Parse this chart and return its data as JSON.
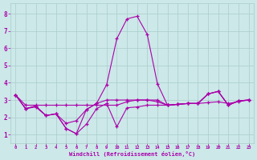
{
  "x": [
    0,
    1,
    2,
    3,
    4,
    5,
    6,
    7,
    8,
    9,
    10,
    11,
    12,
    13,
    14,
    15,
    16,
    17,
    18,
    19,
    20,
    21,
    22,
    23
  ],
  "line_spike": [
    3.3,
    2.5,
    2.65,
    2.1,
    2.2,
    1.35,
    1.05,
    2.45,
    2.8,
    3.9,
    6.55,
    7.7,
    7.85,
    6.8,
    3.95,
    2.7,
    2.75,
    2.8,
    2.8,
    3.35,
    3.5,
    2.7,
    2.95,
    3.0
  ],
  "line_mid": [
    3.3,
    2.5,
    2.65,
    2.1,
    2.2,
    1.65,
    1.8,
    2.45,
    2.8,
    3.0,
    3.0,
    3.0,
    3.0,
    3.0,
    3.0,
    2.7,
    2.75,
    2.8,
    2.8,
    3.35,
    3.5,
    2.7,
    2.95,
    3.0
  ],
  "line_low": [
    3.3,
    2.5,
    2.6,
    2.1,
    2.2,
    1.35,
    1.05,
    1.6,
    2.5,
    2.8,
    1.45,
    2.55,
    2.6,
    2.7,
    2.7,
    2.7,
    2.75,
    2.8,
    2.8,
    3.35,
    3.5,
    2.7,
    2.95,
    3.0
  ],
  "line_flat": [
    3.3,
    2.7,
    2.7,
    2.7,
    2.7,
    2.7,
    2.7,
    2.7,
    2.7,
    2.7,
    2.7,
    2.9,
    3.0,
    3.0,
    2.9,
    2.7,
    2.75,
    2.8,
    2.8,
    2.85,
    2.9,
    2.8,
    2.9,
    3.0
  ],
  "bg_color": "#cce8e8",
  "grid_color": "#aacccc",
  "line_color": "#aa00aa",
  "xlabel": "Windchill (Refroidissement éolien,°C)",
  "ylim": [
    0.5,
    8.6
  ],
  "xlim": [
    -0.5,
    23.5
  ],
  "yticks": [
    1,
    2,
    3,
    4,
    5,
    6,
    7,
    8
  ],
  "xticks": [
    0,
    1,
    2,
    3,
    4,
    5,
    6,
    7,
    8,
    9,
    10,
    11,
    12,
    13,
    14,
    15,
    16,
    17,
    18,
    19,
    20,
    21,
    22,
    23
  ]
}
